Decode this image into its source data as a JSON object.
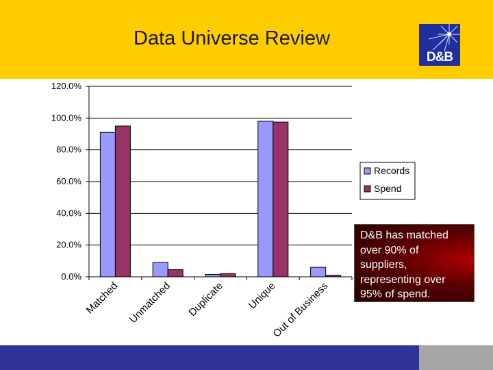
{
  "header": {
    "title": "Data Universe Review"
  },
  "logo": {
    "text": "D&B"
  },
  "callout": {
    "text": "D&B has matched over 90% of suppliers, representing over 95% of spend."
  },
  "colors": {
    "header": "#ffcc00",
    "records": "#9999ff",
    "spend": "#993366",
    "footer_blue": "#2e3395",
    "footer_gray": "#a6a6a6"
  },
  "chart_data": {
    "type": "bar",
    "categories": [
      "Matched",
      "Unmatched",
      "Duplicate",
      "Unique",
      "Out of Business"
    ],
    "series": [
      {
        "name": "Records",
        "values": [
          91,
          9,
          1.5,
          98,
          6
        ]
      },
      {
        "name": "Spend",
        "values": [
          95,
          4.5,
          2,
          97.5,
          1
        ]
      }
    ],
    "yticks": [
      "0.0%",
      "20.0%",
      "40.0%",
      "60.0%",
      "80.0%",
      "100.0%",
      "120.0%"
    ],
    "ylim": [
      0,
      120
    ],
    "grid": true,
    "legend": "right"
  }
}
